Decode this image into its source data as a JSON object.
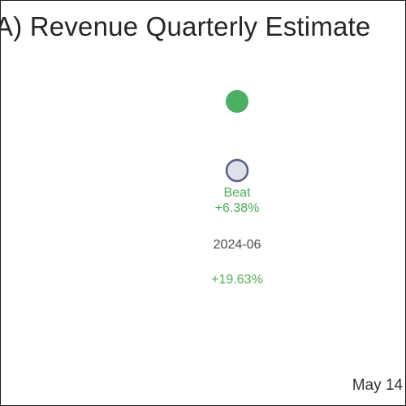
{
  "chart_data": {
    "type": "scatter",
    "title": "A) Revenue Quarterly Estimate",
    "categories": [
      "2024-06"
    ],
    "series": [
      {
        "values": [
          1.1963
        ]
      },
      {
        "values": [
          1.0
        ]
      }
    ],
    "annotations": {
      "status": "Beat",
      "surprise": "+6.38%",
      "change": "+19.63%"
    },
    "date": "May 14",
    "colors": {
      "actual": "#4caf63",
      "estimate_fill": "#dfe1e8",
      "estimate_stroke": "#5b6089",
      "positive_text": "#4caf50",
      "tick_text": "#4a4a4a"
    }
  }
}
